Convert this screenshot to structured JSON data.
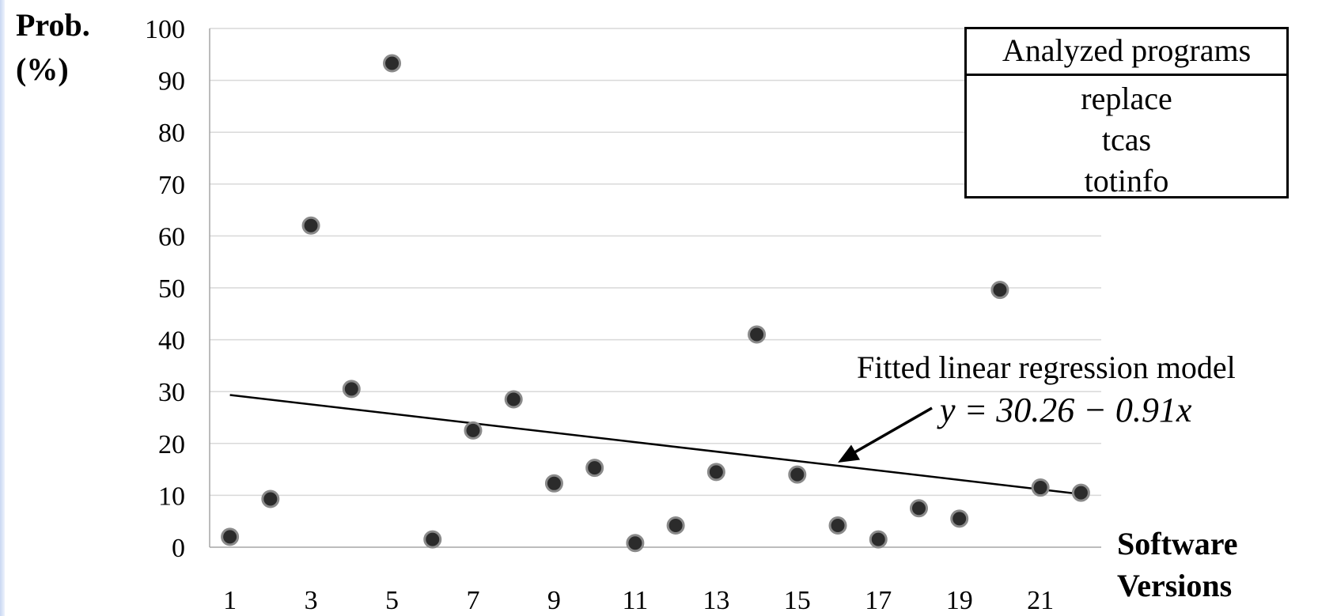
{
  "chart_data": {
    "type": "scatter",
    "xlabel": [
      "Software",
      "Versions"
    ],
    "ylabel": [
      "Prob.",
      "(%)"
    ],
    "xlim": [
      0.5,
      22.5
    ],
    "ylim": [
      0,
      100
    ],
    "x_ticks": [
      1,
      3,
      5,
      7,
      9,
      11,
      13,
      15,
      17,
      19,
      21
    ],
    "y_ticks": [
      0,
      10,
      20,
      30,
      40,
      50,
      60,
      70,
      80,
      90,
      100
    ],
    "grid": "horizontal",
    "points": [
      {
        "x": 1,
        "y": 2
      },
      {
        "x": 2,
        "y": 9.3
      },
      {
        "x": 3,
        "y": 62
      },
      {
        "x": 4,
        "y": 30.5
      },
      {
        "x": 5,
        "y": 93.3
      },
      {
        "x": 6,
        "y": 1.5
      },
      {
        "x": 7,
        "y": 22.5
      },
      {
        "x": 8,
        "y": 28.5
      },
      {
        "x": 9,
        "y": 12.3
      },
      {
        "x": 10,
        "y": 15.3
      },
      {
        "x": 11,
        "y": 0.8
      },
      {
        "x": 12,
        "y": 4.2
      },
      {
        "x": 13,
        "y": 14.5
      },
      {
        "x": 14,
        "y": 41
      },
      {
        "x": 15,
        "y": 14
      },
      {
        "x": 16,
        "y": 4.2
      },
      {
        "x": 17,
        "y": 1.5
      },
      {
        "x": 18,
        "y": 7.5
      },
      {
        "x": 19,
        "y": 5.5
      },
      {
        "x": 20,
        "y": 49.6
      },
      {
        "x": 21,
        "y": 11.5
      },
      {
        "x": 22,
        "y": 10.5
      }
    ],
    "regression": {
      "intercept": 30.26,
      "slope": -0.91,
      "x_range": [
        1,
        22
      ],
      "label": "Fitted linear regression model",
      "equation": "y = 30.26 − 0.91x",
      "arrow_target_x": 16
    },
    "legend": {
      "title": "Analyzed programs",
      "items": [
        "replace",
        "tcas",
        "totinfo"
      ],
      "position": "top-right"
    },
    "colors": {
      "marker_fill": "#2b2b2b",
      "marker_stroke": "#8a8a8a",
      "grid": "#d9d9d9",
      "axis": "#a6a6a6",
      "line": "#000000"
    }
  }
}
